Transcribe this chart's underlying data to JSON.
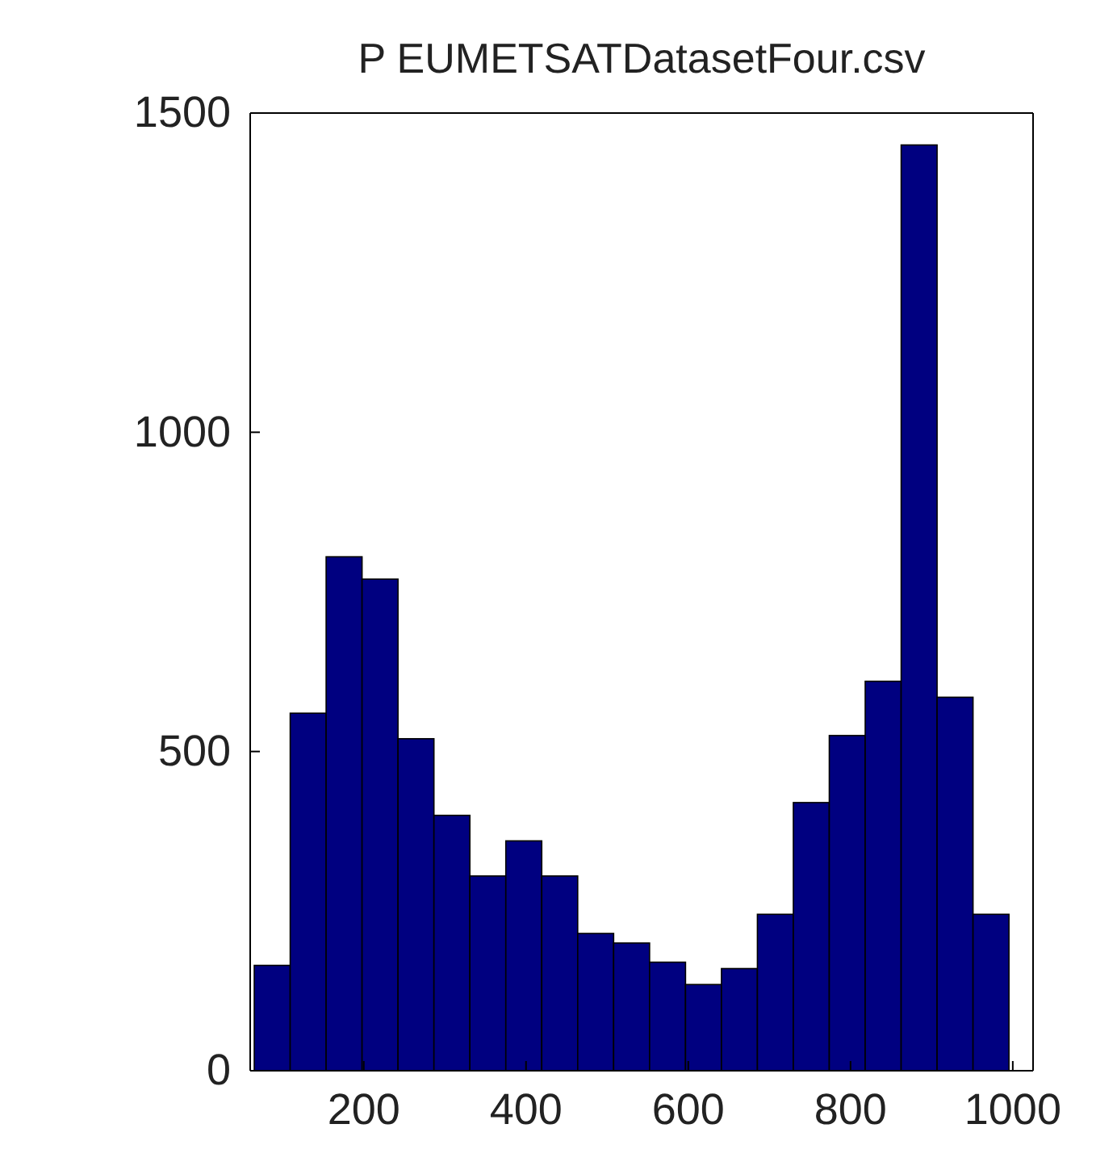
{
  "chart_data": {
    "type": "histogram",
    "title": "P EUMETSATDatasetFour.csv",
    "bins": [
      65,
      109.3,
      153.6,
      197.9,
      242.2,
      286.5,
      330.8,
      375.1,
      419.4,
      463.7,
      508,
      552.3,
      596.6,
      640.9,
      685.2,
      729.5,
      773.8,
      818.1,
      862.4,
      906.7,
      951,
      995.3
    ],
    "values": [
      165,
      560,
      805,
      770,
      520,
      400,
      305,
      360,
      305,
      215,
      200,
      170,
      135,
      160,
      245,
      420,
      525,
      610,
      1450,
      585,
      245
    ],
    "color": "#000080",
    "xlim": [
      60,
      1025
    ],
    "xticks": [
      200,
      400,
      600,
      800,
      1000
    ],
    "ylim": [
      0,
      1500
    ],
    "yticks": [
      0,
      500,
      1000,
      1500
    ],
    "grid": false
  }
}
